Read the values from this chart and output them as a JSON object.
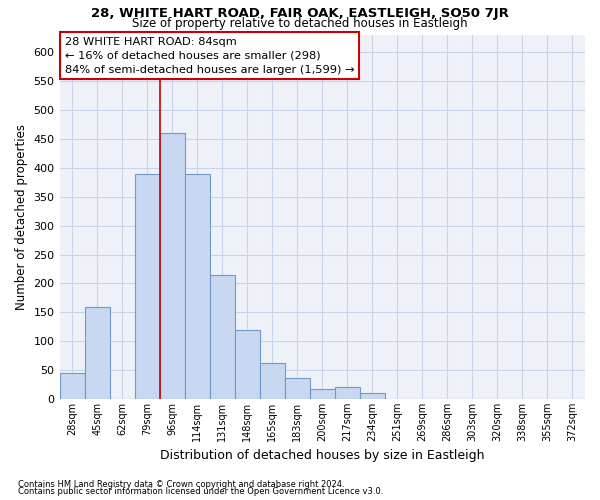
{
  "title": "28, WHITE HART ROAD, FAIR OAK, EASTLEIGH, SO50 7JR",
  "subtitle": "Size of property relative to detached houses in Eastleigh",
  "xlabel": "Distribution of detached houses by size in Eastleigh",
  "ylabel": "Number of detached properties",
  "bar_labels": [
    "28sqm",
    "45sqm",
    "62sqm",
    "79sqm",
    "96sqm",
    "114sqm",
    "131sqm",
    "148sqm",
    "165sqm",
    "183sqm",
    "200sqm",
    "217sqm",
    "234sqm",
    "251sqm",
    "269sqm",
    "286sqm",
    "303sqm",
    "320sqm",
    "338sqm",
    "355sqm",
    "372sqm"
  ],
  "bar_values": [
    45,
    160,
    0,
    390,
    460,
    390,
    215,
    120,
    63,
    37,
    18,
    20,
    10,
    0,
    0,
    0,
    0,
    0,
    0,
    0,
    0
  ],
  "bar_color": "#c8d8f0",
  "bar_edge_color": "#7098c8",
  "vline_x": 3.5,
  "vline_color": "#cc0000",
  "ylim": [
    0,
    630
  ],
  "yticks": [
    0,
    50,
    100,
    150,
    200,
    250,
    300,
    350,
    400,
    450,
    500,
    550,
    600
  ],
  "annotation_title": "28 WHITE HART ROAD: 84sqm",
  "annotation_line1": "← 16% of detached houses are smaller (298)",
  "annotation_line2": "84% of semi-detached houses are larger (1,599) →",
  "footnote1": "Contains HM Land Registry data © Crown copyright and database right 2024.",
  "footnote2": "Contains public sector information licensed under the Open Government Licence v3.0.",
  "background_color": "#ffffff",
  "grid_color": "#c8d4e8",
  "ax_bg_color": "#eef2f8"
}
